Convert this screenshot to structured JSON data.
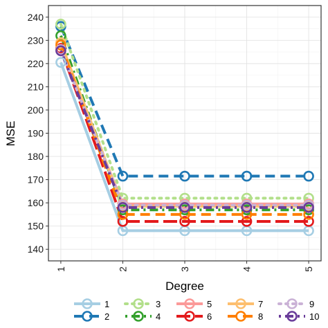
{
  "chart_data": {
    "type": "line",
    "xlabel": "Degree",
    "ylabel": "MSE",
    "x": [
      1,
      2,
      3,
      4,
      5
    ],
    "x_ticks": [
      "1",
      "2",
      "3",
      "4",
      "5"
    ],
    "y_ticks": [
      "140",
      "150",
      "160",
      "170",
      "180",
      "190",
      "200",
      "210",
      "220",
      "230",
      "240"
    ],
    "ylim": [
      135,
      245
    ],
    "xlim": [
      0.8,
      5.2
    ],
    "grid": true,
    "legend_position": "bottom",
    "series": [
      {
        "name": "1",
        "color": "#a6cee3",
        "dash": "solid",
        "values": [
          220.5,
          148.0,
          148.0,
          148.0,
          148.0
        ]
      },
      {
        "name": "2",
        "color": "#1f78b4",
        "dash": "dashed",
        "values": [
          236.0,
          171.5,
          171.5,
          171.5,
          171.5
        ]
      },
      {
        "name": "3",
        "color": "#b2df8a",
        "dash": "dotted",
        "values": [
          237.0,
          162.0,
          162.0,
          162.0,
          162.0
        ]
      },
      {
        "name": "4",
        "color": "#33a02c",
        "dash": "dotdash",
        "values": [
          232.0,
          157.0,
          157.0,
          157.0,
          157.0
        ]
      },
      {
        "name": "5",
        "color": "#fb9a99",
        "dash": "solid",
        "values": [
          226.0,
          159.5,
          159.5,
          159.5,
          159.5
        ]
      },
      {
        "name": "6",
        "color": "#e31a1c",
        "dash": "longdash",
        "values": [
          226.5,
          152.0,
          152.0,
          152.0,
          152.0
        ]
      },
      {
        "name": "7",
        "color": "#fdbf6f",
        "dash": "solid",
        "values": [
          229.0,
          158.5,
          158.5,
          158.5,
          158.5
        ]
      },
      {
        "name": "8",
        "color": "#ff7f00",
        "dash": "dashed",
        "values": [
          228.0,
          155.0,
          155.0,
          155.0,
          155.0
        ]
      },
      {
        "name": "9",
        "color": "#cab2d6",
        "dash": "dotted",
        "values": [
          226.0,
          159.0,
          159.0,
          159.0,
          159.0
        ]
      },
      {
        "name": "10",
        "color": "#6a3d9a",
        "dash": "dotdash",
        "values": [
          225.5,
          158.0,
          158.0,
          158.0,
          158.0
        ]
      }
    ]
  }
}
